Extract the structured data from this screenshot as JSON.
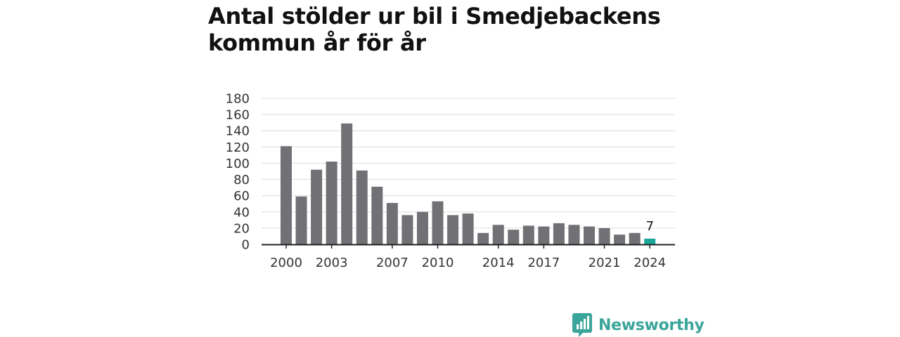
{
  "title": "Antal stölder ur bil i Smedjebackens kommun år för år",
  "brand": {
    "name": "Newsworthy",
    "color": "#3aa59a"
  },
  "colors": {
    "bar": "#717074",
    "highlight": "#1ba89b",
    "grid": "#dcdcdc",
    "axis": "#222222",
    "text": "#333333"
  },
  "chart_data": {
    "type": "bar",
    "title": "Antal stölder ur bil i Smedjebackens kommun år för år",
    "xlabel": "",
    "ylabel": "",
    "categories": [
      "2000",
      "2001",
      "2002",
      "2003",
      "2004",
      "2005",
      "2006",
      "2007",
      "2008",
      "2009",
      "2010",
      "2011",
      "2012",
      "2013",
      "2014",
      "2015",
      "2016",
      "2017",
      "2018",
      "2019",
      "2020",
      "2021",
      "2022",
      "2023",
      "2024"
    ],
    "values": [
      121,
      59,
      92,
      102,
      149,
      91,
      71,
      51,
      36,
      40,
      53,
      36,
      38,
      14,
      24,
      18,
      23,
      22,
      26,
      24,
      22,
      20,
      12,
      14,
      7
    ],
    "x_tick_labels": [
      "2000",
      "2003",
      "2007",
      "2010",
      "2014",
      "2017",
      "2021",
      "2024"
    ],
    "y_ticks": [
      0,
      20,
      40,
      60,
      80,
      100,
      120,
      140,
      160,
      180
    ],
    "ylim": [
      0,
      180
    ],
    "grid": true,
    "legend": "none",
    "highlight": {
      "category": "2024",
      "label": "7"
    }
  }
}
